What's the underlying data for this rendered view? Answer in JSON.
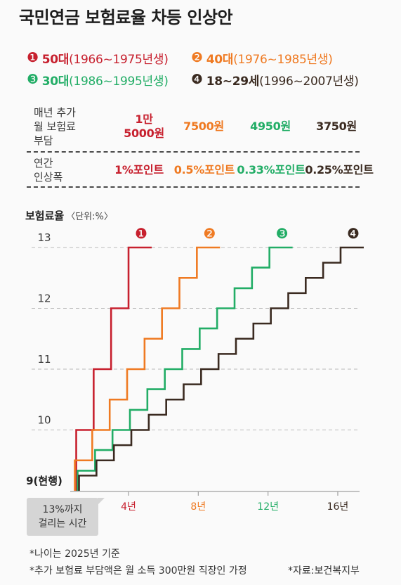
{
  "chart_data": {
    "type": "line",
    "step": true,
    "title": "국민연금 보험료율 차등 인상안",
    "ylabel": "보험료율",
    "yunit": "〈단위:%〉",
    "ylim": [
      9,
      13
    ],
    "xlim": [
      0,
      17
    ],
    "grid": true,
    "legend_position": "top",
    "yticks": [
      {
        "value": 13,
        "label": "13"
      },
      {
        "value": 12,
        "label": "12"
      },
      {
        "value": 11,
        "label": "11"
      },
      {
        "value": 10,
        "label": "10"
      },
      {
        "value": 9,
        "label": "9(현행)"
      }
    ],
    "xticks": [
      {
        "value": 4,
        "label": "4년"
      },
      {
        "value": 8,
        "label": "8년"
      },
      {
        "value": 12,
        "label": "12년"
      },
      {
        "value": 16,
        "label": "16년"
      }
    ],
    "annotation": [
      "13%까지",
      "걸리는 시간"
    ],
    "series": [
      {
        "name": "50대",
        "born": "(1966~1975년생)",
        "marker": "❶",
        "color": "#c7202e",
        "x": [
          0,
          1,
          2,
          3,
          4
        ],
        "y": [
          9,
          10,
          11,
          12,
          13
        ]
      },
      {
        "name": "40대",
        "born": "(1976~1985년생)",
        "marker": "❷",
        "color": "#ef7a22",
        "x": [
          0,
          1,
          2,
          3,
          4,
          5,
          6,
          7,
          8
        ],
        "y": [
          9,
          9.5,
          10,
          10.5,
          11,
          11.5,
          12,
          12.5,
          13
        ]
      },
      {
        "name": "30대",
        "born": "(1986~1995년생)",
        "marker": "❸",
        "color": "#22ad66",
        "x": [
          0,
          1,
          2,
          3,
          4,
          5,
          6,
          7,
          8,
          9,
          10,
          11,
          12
        ],
        "y": [
          9,
          9.33,
          9.67,
          10,
          10.33,
          10.67,
          11,
          11.33,
          11.67,
          12,
          12.33,
          12.67,
          13
        ]
      },
      {
        "name": "18~29세",
        "born": "(1996~2007년생)",
        "marker": "❹",
        "color": "#3a2a20",
        "x": [
          0,
          1,
          2,
          3,
          4,
          5,
          6,
          7,
          8,
          9,
          10,
          11,
          12,
          13,
          14,
          15,
          16
        ],
        "y": [
          9,
          9.25,
          9.5,
          9.75,
          10,
          10.25,
          10.5,
          10.75,
          11,
          11.25,
          11.5,
          11.75,
          12,
          12.25,
          12.5,
          12.75,
          13
        ]
      }
    ]
  },
  "table": {
    "rows": [
      {
        "label": [
          "매년 추가",
          "월 보험료",
          "부담"
        ],
        "values": [
          [
            "1만",
            "5000원"
          ],
          [
            "7500원"
          ],
          [
            "4950원"
          ],
          [
            "3750원"
          ]
        ]
      },
      {
        "label": [
          "연간",
          "인상폭"
        ],
        "values": [
          "1%포인트",
          "0.5%포인트",
          "0.33%포인트",
          "0.25%포인트"
        ]
      }
    ]
  },
  "footer": {
    "notes": [
      "*나이는 2025년 기준",
      "*추가 보험료 부담액은 월 소득 300만원 직장인 가정"
    ],
    "source": "*자료:보건복지부"
  }
}
